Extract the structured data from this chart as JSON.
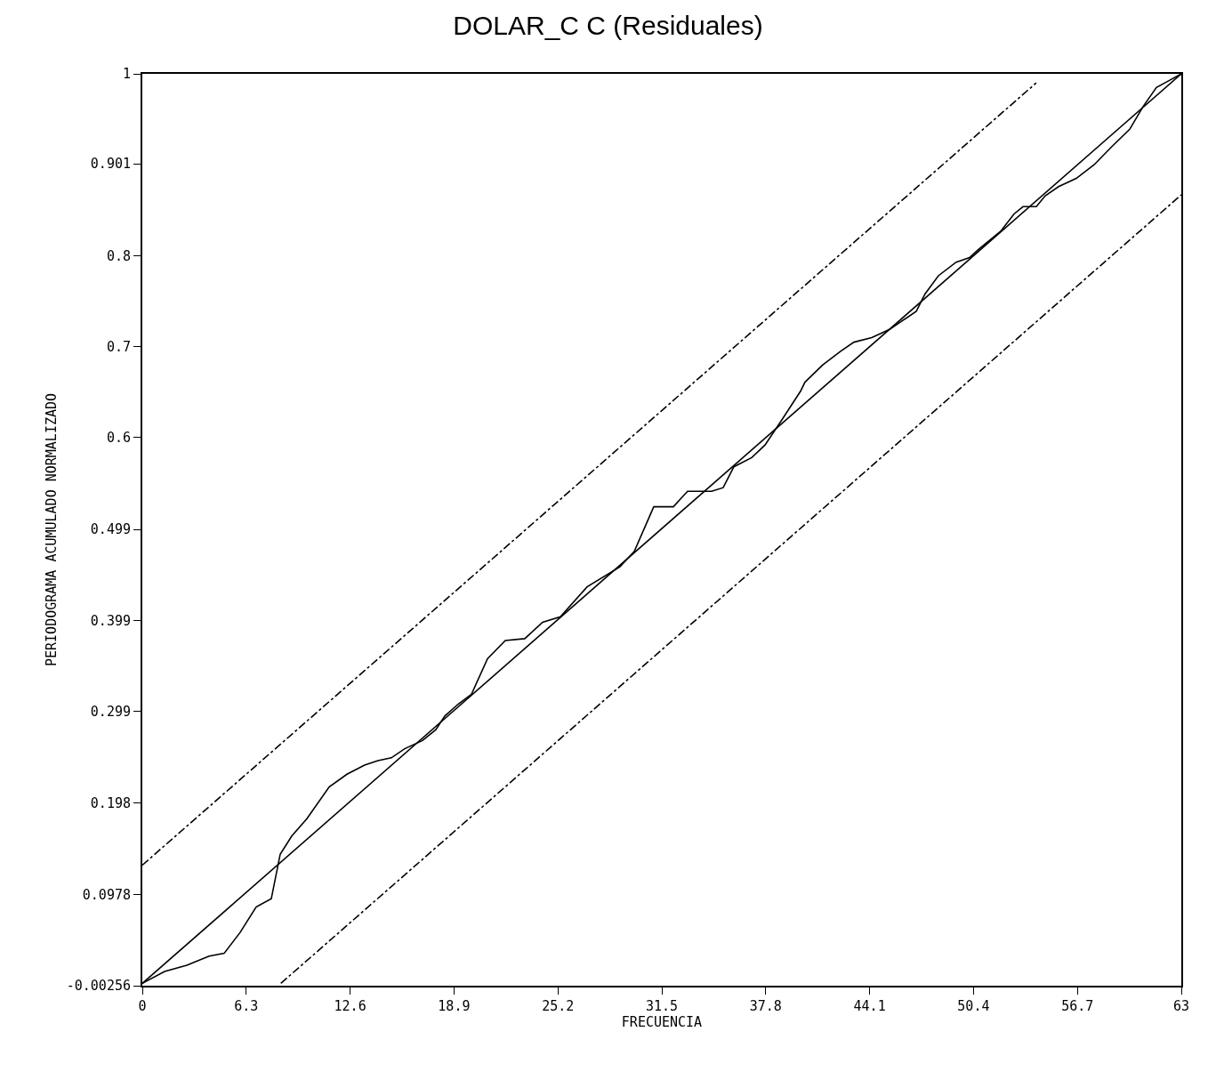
{
  "chart_data": {
    "type": "line",
    "title": "DOLAR_C C (Residuales)",
    "xlabel": "FRECUENCIA",
    "ylabel": "PERIODOGRAMA ACUMULADO NORMALIZADO",
    "xlim": [
      0,
      63
    ],
    "ylim": [
      -0.00256,
      1
    ],
    "xticks": [
      0,
      6.3,
      12.6,
      18.9,
      25.2,
      31.5,
      37.8,
      44.1,
      50.4,
      56.7,
      63
    ],
    "yticks": [
      -0.00256,
      0.0978,
      0.198,
      0.299,
      0.399,
      0.499,
      0.6,
      0.7,
      0.8,
      0.901,
      1
    ],
    "series": [
      {
        "color": "#000000",
        "line_style": "solid",
        "x": [
          0,
          1.35,
          2.7,
          4.05,
          4.96,
          5.93,
          6.9,
          7.82,
          8.36,
          9.06,
          9.98,
          11.33,
          12.41,
          13.48,
          14.29,
          15.1,
          15.91,
          16.99,
          17.8,
          18.34,
          19.15,
          19.96,
          20.93,
          22.01,
          23.19,
          24.27,
          25.35,
          26.97,
          28.96,
          29.83,
          31.01,
          32.2,
          33.06,
          34.52,
          35.22,
          35.87,
          36.95,
          37.76,
          38.83,
          39.91,
          40.18,
          41.26,
          42.34,
          43.15,
          44.23,
          45.31,
          46.93,
          47.46,
          48.27,
          49.35,
          50.16,
          50.7,
          52.05,
          52.86,
          53.4,
          54.21,
          54.75,
          55.56,
          56.63,
          57.71,
          58.79,
          59.87,
          60.68,
          61.49,
          62.3,
          63
        ],
        "values": [
          0,
          0.013,
          0.02,
          0.03,
          0.033,
          0.056,
          0.084,
          0.093,
          0.142,
          0.162,
          0.181,
          0.216,
          0.23,
          0.24,
          0.245,
          0.248,
          0.258,
          0.267,
          0.279,
          0.294,
          0.307,
          0.318,
          0.357,
          0.377,
          0.379,
          0.397,
          0.403,
          0.436,
          0.458,
          0.475,
          0.524,
          0.524,
          0.541,
          0.541,
          0.545,
          0.568,
          0.578,
          0.592,
          0.621,
          0.651,
          0.661,
          0.68,
          0.695,
          0.705,
          0.71,
          0.719,
          0.739,
          0.758,
          0.778,
          0.793,
          0.798,
          0.807,
          0.827,
          0.846,
          0.854,
          0.854,
          0.866,
          0.876,
          0.885,
          0.9,
          0.92,
          0.939,
          0.964,
          0.985,
          0.993,
          1
        ]
      },
      {
        "color": "#000000",
        "line_style": "solid",
        "x": [
          0,
          63
        ],
        "values": [
          0,
          1
        ]
      },
      {
        "color": "#000000",
        "line_style": "dashed",
        "x": [
          0,
          54.2
        ],
        "values": [
          0.13,
          0.99
        ]
      },
      {
        "color": "#000000",
        "line_style": "dashed",
        "x": [
          8.4,
          63
        ],
        "values": [
          0,
          0.867
        ]
      }
    ]
  }
}
